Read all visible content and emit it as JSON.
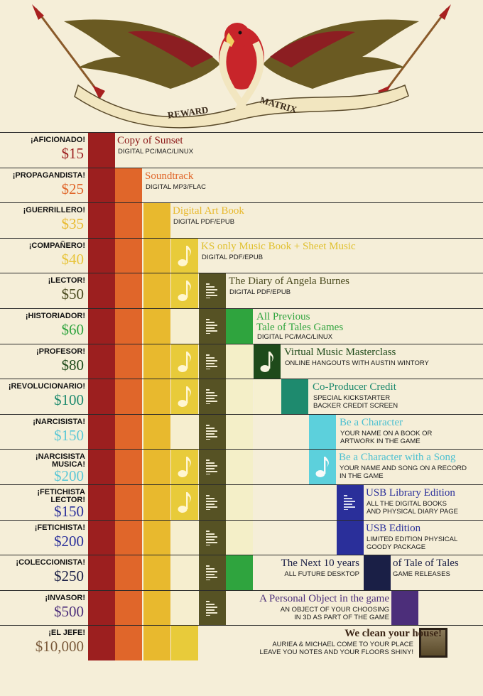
{
  "header": {
    "banner_left": "REWARD",
    "banner_right": "MATRIX"
  },
  "colors": {
    "c1": "#9c1f1f",
    "c2": "#e0662a",
    "c3": "#e8b92e",
    "c4": "#e8cb3a",
    "c5": "#565224",
    "c6": "#2fa43e",
    "c7": "#1e4a1a",
    "c8": "#1e8a6e",
    "c9": "#5cd0dc",
    "c10": "#2a2f9a",
    "c11": "#1a1f46",
    "c12": "#4c2e7a"
  },
  "tiers": [
    {
      "name": "¡AFICIONADO!",
      "price": "$15",
      "price_color": "#9c1f1f",
      "title": "Copy of Sunset",
      "title_color": "#8a1414",
      "sub": [
        "DIGITAL PC/MAC/LINUX"
      ]
    },
    {
      "name": "¡PROPAGANDISTA!",
      "price": "$25",
      "price_color": "#e0662a",
      "title": "Soundtrack",
      "title_color": "#e0662a",
      "sub": [
        "DIGITAL MP3/FLAC"
      ]
    },
    {
      "name": "¡GUERRILLERO!",
      "price": "$35",
      "price_color": "#e8b92e",
      "title": "Digital Art Book",
      "title_color": "#e8b92e",
      "sub": [
        "DIGITAL PDF/EPUB"
      ]
    },
    {
      "name": "¡COMPAÑERO!",
      "price": "$40",
      "price_color": "#e8c43a",
      "title": "KS only Music Book + Sheet Music",
      "title_color": "#e0c02e",
      "sub": [
        "DIGITAL PDF/EPUB"
      ]
    },
    {
      "name": "¡LECTOR!",
      "price": "$50",
      "price_color": "#4a4a1e",
      "title": "The Diary of Angela Burnes",
      "title_color": "#4a4a1e",
      "sub": [
        "DIGITAL PDF/EPUB"
      ]
    },
    {
      "name": "¡HISTORIADOR!",
      "price": "$60",
      "price_color": "#2fa43e",
      "title": "All  Previous",
      "title2": "Tale of Tales Games",
      "title_color": "#2fa43e",
      "sub": [
        "DIGITAL PC/MAC/LINUX"
      ]
    },
    {
      "name": "¡PROFESOR!",
      "price": "$80",
      "price_color": "#1e4a1a",
      "title": "Virtual Music Masterclass",
      "title_color": "#1e4a1a",
      "sub": [
        "ONLINE HANGOUTS WITH AUSTIN WINTORY"
      ]
    },
    {
      "name": "¡REVOLUCIONARIO!",
      "price": "$100",
      "price_color": "#1e8a6e",
      "title": "Co-Producer Credit",
      "title_color": "#1e8a6e",
      "sub": [
        "SPECIAL KICKSTARTER",
        "BACKER CREDIT SCREEN"
      ]
    },
    {
      "name": "¡NARCISISTA!",
      "price": "$150",
      "price_color": "#5cc8d6",
      "title": "Be a Character",
      "title_color": "#4cc0d0",
      "sub": [
        "YOUR NAME ON A BOOK OR",
        "ARTWORK IN THE GAME"
      ]
    },
    {
      "name": "¡NARCISISTA",
      "name2": "MUSICA!",
      "price": "$200",
      "price_color": "#5cc8d6",
      "title": "Be a Character with a Song",
      "title_color": "#4cc0d0",
      "sub": [
        "YOUR NAME AND SONG ON A RECORD",
        "IN THE GAME"
      ]
    },
    {
      "name": "¡FETICHISTA",
      "name2": "LECTOR!",
      "price": "$150",
      "price_color": "#2a2f9a",
      "title": "USB Library Edition",
      "title_color": "#2a2f9a",
      "sub": [
        "ALL THE DIGITAL BOOKS",
        "AND PHYSICAL DIARY PAGE"
      ]
    },
    {
      "name": "¡FETICHISTA!",
      "price": "$200",
      "price_color": "#2a2f9a",
      "title": "USB Edition",
      "title_color": "#2a2f9a",
      "sub": [
        "LIMITED EDITION PHYSICAL",
        "GOODY PACKAGE"
      ]
    },
    {
      "name": "¡COLECCIONISTA!",
      "price": "$250",
      "price_color": "#1a1f46",
      "title": "The Next 10 years",
      "title_b": "of Tale of Tales",
      "title_color": "#1a1f46",
      "sub": [
        "ALL FUTURE DESKTOP"
      ],
      "sub_b": [
        "GAME RELEASES"
      ]
    },
    {
      "name": "¡INVASOR!",
      "price": "$500",
      "price_color": "#4c2e7a",
      "title": "A Personal Object in the game",
      "title_color": "#4c2e7a",
      "sub": [
        "AN OBJECT OF YOUR CHOOSING",
        "IN 3D AS PART OF THE GAME"
      ]
    },
    {
      "name": "¡EL JEFE!",
      "price": "$10,000",
      "price_color": "#7a5a3a",
      "title": "We clean your house!",
      "title_color": "#3a2414",
      "sub": [
        "AURIEA & MICHAEL COME TO YOUR PLACE",
        "LEAVE YOU NOTES AND YOUR FLOORS SHINY!"
      ]
    }
  ]
}
